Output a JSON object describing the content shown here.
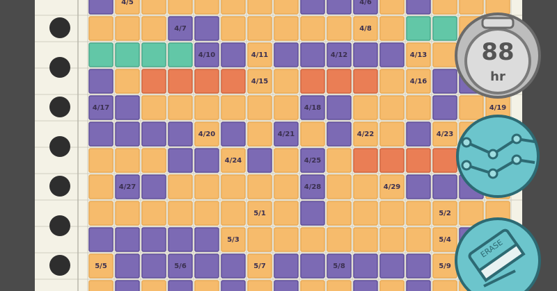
{
  "planner": {
    "date_labels": [
      "4/5",
      "4/6",
      "4/7",
      "4/8",
      "4/10",
      "4/11",
      "4/12",
      "4/13",
      "4/15",
      "4/16",
      "4/17",
      "4/18",
      "4/19",
      "4/20",
      "4/21",
      "4/22",
      "4/23",
      "4/24",
      "4/25",
      "4/27",
      "4/28",
      "4/29",
      "5/1",
      "5/2",
      "5/3",
      "5/4",
      "5/5",
      "5/6",
      "5/7",
      "5/8",
      "5/9"
    ]
  },
  "hours_badge": {
    "value": "88",
    "unit": "hr"
  },
  "eraser_button": {
    "label": "ERASE"
  }
}
